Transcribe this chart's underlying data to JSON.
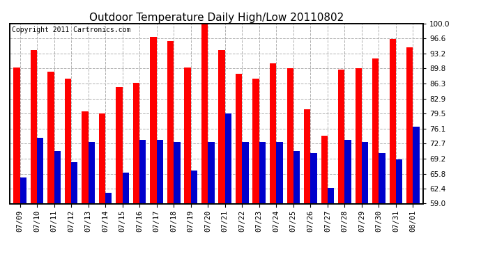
{
  "title": "Outdoor Temperature Daily High/Low 20110802",
  "copyright": "Copyright 2011 Cartronics.com",
  "dates": [
    "07/09",
    "07/10",
    "07/11",
    "07/12",
    "07/13",
    "07/14",
    "07/15",
    "07/16",
    "07/17",
    "07/18",
    "07/19",
    "07/20",
    "07/21",
    "07/22",
    "07/23",
    "07/24",
    "07/25",
    "07/26",
    "07/27",
    "07/28",
    "07/29",
    "07/30",
    "07/31",
    "08/01"
  ],
  "highs": [
    90.0,
    94.0,
    89.0,
    87.5,
    80.0,
    79.5,
    85.5,
    86.5,
    97.0,
    96.0,
    90.0,
    100.0,
    94.0,
    88.5,
    87.5,
    91.0,
    89.8,
    80.5,
    74.5,
    89.5,
    89.8,
    92.0,
    96.5,
    94.5
  ],
  "lows": [
    65.0,
    74.0,
    71.0,
    68.5,
    73.0,
    61.5,
    66.0,
    73.5,
    73.5,
    73.0,
    66.5,
    73.0,
    79.5,
    73.0,
    73.0,
    73.0,
    71.0,
    70.5,
    62.5,
    73.5,
    73.0,
    70.5,
    69.0,
    76.5
  ],
  "high_color": "#ff0000",
  "low_color": "#0000cc",
  "bg_color": "#ffffff",
  "grid_color": "#b0b0b0",
  "ymin": 59.0,
  "ymax": 100.0,
  "yticks": [
    59.0,
    62.4,
    65.8,
    69.2,
    72.7,
    76.1,
    79.5,
    82.9,
    86.3,
    89.8,
    93.2,
    96.6,
    100.0
  ],
  "title_fontsize": 11,
  "copyright_fontsize": 7,
  "tick_fontsize": 7.5
}
